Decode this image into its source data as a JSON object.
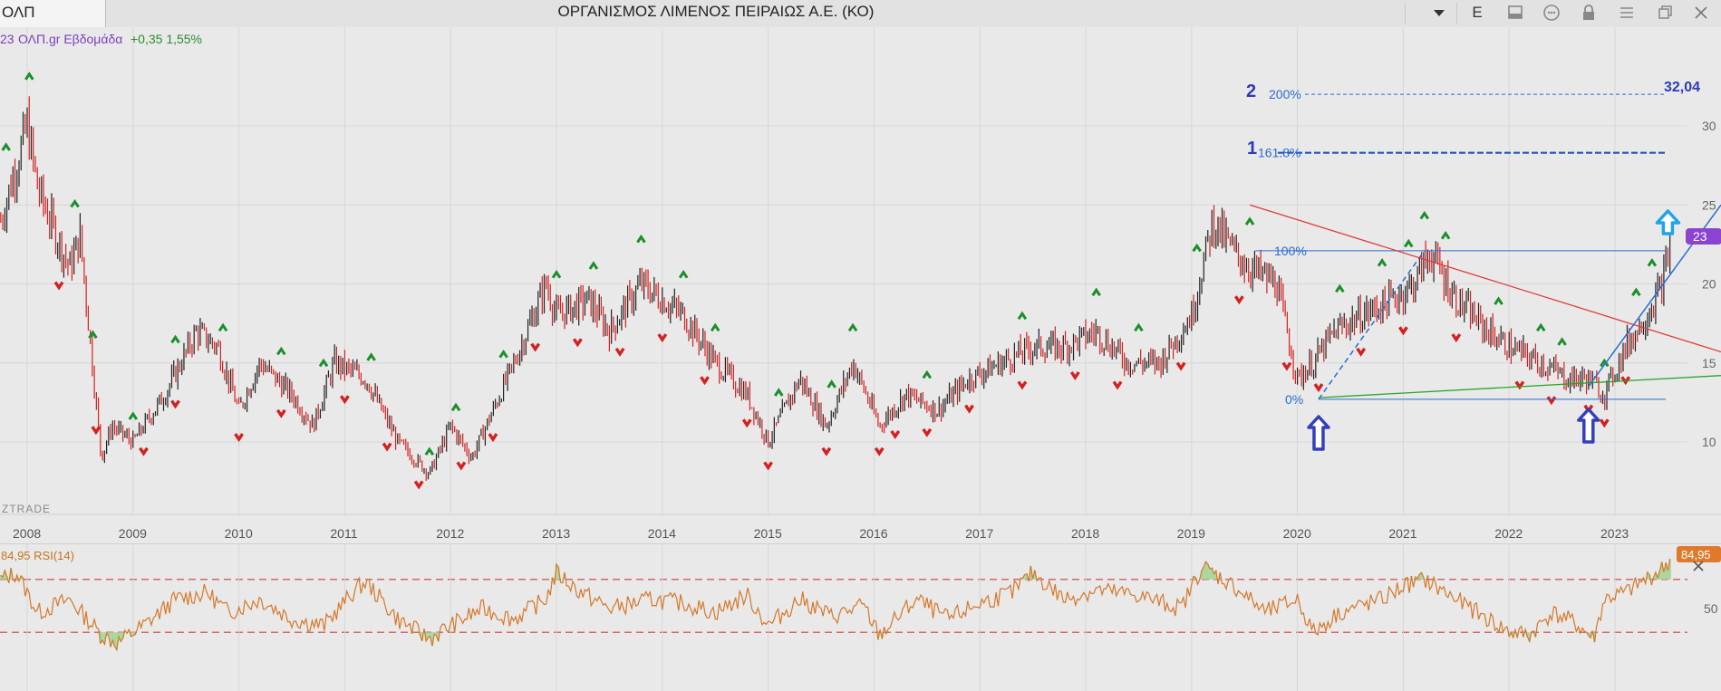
{
  "window": {
    "tab_label": "ΟΛΠ",
    "title": "ΟΡΓΑΝΙΣΜΟΣ ΛΙΜΕΝΟΣ ΠΕΙΡΑΙΩΣ Α.Ε. (ΚΟ)",
    "toolbar_letter": "E",
    "icons": [
      "chevron-down-icon",
      "sidebar-icon",
      "chat-icon",
      "lock-icon",
      "menu-icon",
      "restore-icon",
      "close-icon"
    ]
  },
  "chart_data": [
    {
      "type": "ohlc",
      "header_value": "23",
      "header_name": "ΟΛΠ.gr Εβδομάδα",
      "header_change": "+0,35 1,55%",
      "watermark": "ZTRADE",
      "x_ticks": [
        "2008",
        "2009",
        "2010",
        "2011",
        "2012",
        "2013",
        "2014",
        "2015",
        "2016",
        "2017",
        "2018",
        "2019",
        "2020",
        "2021",
        "2022",
        "2023"
      ],
      "y_ticks": [
        10,
        15,
        20,
        25,
        30
      ],
      "ylim": [
        6,
        35
      ],
      "price_badge": "23",
      "series": [
        {
          "x": [
            2007.75,
            2008.0,
            2008.1,
            2008.4,
            2008.5,
            2008.7,
            2008.8,
            2009.0,
            2009.3,
            2009.6,
            2009.8,
            2010.0,
            2010.2,
            2010.5,
            2010.7,
            2010.9,
            2011.2,
            2011.5,
            2011.8,
            2012.0,
            2012.2,
            2012.4,
            2012.6,
            2012.9,
            2013.0,
            2013.3,
            2013.5,
            2013.8,
            2014.0,
            2014.2,
            2014.5,
            2014.8,
            2015.0,
            2015.3,
            2015.55,
            2015.8,
            2016.05,
            2016.3,
            2016.6,
            2016.9,
            2017.2,
            2017.5,
            2017.8,
            2018.1,
            2018.4,
            2018.7,
            2019.0,
            2019.2,
            2019.4,
            2019.55,
            2019.8,
            2020.0,
            2020.15,
            2020.35,
            2020.6,
            2020.9,
            2021.1,
            2021.25,
            2021.5,
            2021.8,
            2022.0,
            2022.3,
            2022.55,
            2022.75,
            2022.9,
            2023.1,
            2023.3,
            2023.45,
            2023.53
          ],
          "close": [
            24,
            30,
            26,
            21,
            23,
            9,
            11,
            10,
            13,
            17,
            16,
            12,
            15,
            13,
            11,
            15,
            14,
            10,
            8,
            11,
            9,
            12,
            15,
            20,
            18,
            19,
            17,
            20,
            19,
            18,
            15,
            13,
            10,
            14,
            11,
            15,
            11,
            13,
            12,
            14,
            15,
            16,
            16,
            17,
            15,
            15,
            18,
            24,
            22,
            21,
            20,
            14,
            15,
            17,
            18,
            19,
            20,
            22,
            19,
            17,
            16,
            15,
            14,
            14,
            13,
            16,
            18,
            20,
            23
          ]
        }
      ],
      "swing_highs_x": [
        2007.8,
        2008.02,
        2008.45,
        2008.62,
        2009.0,
        2009.4,
        2009.85,
        2010.4,
        2010.8,
        2011.25,
        2011.8,
        2012.05,
        2012.5,
        2013.0,
        2013.35,
        2013.8,
        2014.2,
        2014.5,
        2015.1,
        2015.6,
        2015.8,
        2016.5,
        2017.4,
        2018.1,
        2018.5,
        2019.05,
        2019.55,
        2020.4,
        2020.8,
        2021.05,
        2021.2,
        2021.4,
        2021.9,
        2022.3,
        2022.5,
        2022.9,
        2023.2,
        2023.35
      ],
      "swing_lows_x": [
        2008.3,
        2008.65,
        2009.1,
        2009.4,
        2010.0,
        2010.4,
        2011.0,
        2011.4,
        2011.7,
        2012.1,
        2012.4,
        2012.8,
        2013.2,
        2013.6,
        2014.0,
        2014.4,
        2014.8,
        2015.0,
        2015.55,
        2016.05,
        2016.2,
        2016.5,
        2016.9,
        2017.4,
        2017.9,
        2018.3,
        2018.9,
        2019.45,
        2019.9,
        2020.2,
        2020.6,
        2021.0,
        2021.5,
        2022.1,
        2022.4,
        2022.75,
        2022.9,
        2023.1
      ],
      "annotations": {
        "fib_levels": [
          {
            "label": "0%",
            "value": 12.7
          },
          {
            "label": "100%",
            "value": 22.1
          },
          {
            "label": "161.8%",
            "value": 28.3
          },
          {
            "label": "200%",
            "value": 32.0
          }
        ],
        "wave_labels": [
          "1",
          "2"
        ],
        "target_value": "32,04",
        "arrows": [
          "blue-up-arrow-2020",
          "blue-up-arrow-2022",
          "cyan-up-arrow-2023"
        ],
        "trendlines": [
          "red descending resistance",
          "green rising support",
          "blue rising support",
          "blue dashed fib base"
        ]
      }
    },
    {
      "type": "line",
      "name": "RSI(14)",
      "current_value": "84,95",
      "header": "84,95 RSI(14)",
      "y_ticks": [
        50
      ],
      "ylim": [
        10,
        95
      ],
      "overbought": 70,
      "oversold": 30,
      "x": [
        2007.75,
        2007.9,
        2008.1,
        2008.4,
        2008.7,
        2008.85,
        2009.1,
        2009.4,
        2009.7,
        2009.9,
        2010.2,
        2010.5,
        2010.8,
        2011.1,
        2011.2,
        2011.5,
        2011.8,
        2012.0,
        2012.3,
        2012.6,
        2012.9,
        2013.0,
        2013.2,
        2013.5,
        2013.9,
        2014.2,
        2014.5,
        2014.8,
        2015.0,
        2015.3,
        2015.6,
        2015.9,
        2016.05,
        2016.4,
        2016.7,
        2017.0,
        2017.3,
        2017.5,
        2017.8,
        2018.1,
        2018.5,
        2018.9,
        2019.1,
        2019.4,
        2019.7,
        2020.0,
        2020.15,
        2020.4,
        2020.8,
        2021.0,
        2021.2,
        2021.5,
        2021.8,
        2022.0,
        2022.2,
        2022.4,
        2022.6,
        2022.8,
        2022.9,
        2023.1,
        2023.3,
        2023.45,
        2023.53
      ],
      "values": [
        70,
        75,
        45,
        55,
        28,
        22,
        35,
        55,
        60,
        45,
        55,
        40,
        35,
        62,
        68,
        40,
        25,
        35,
        48,
        40,
        55,
        75,
        62,
        48,
        55,
        52,
        45,
        58,
        35,
        55,
        42,
        50,
        28,
        55,
        40,
        52,
        60,
        75,
        55,
        62,
        58,
        48,
        80,
        65,
        45,
        55,
        30,
        45,
        55,
        65,
        70,
        55,
        40,
        30,
        28,
        45,
        38,
        25,
        55,
        60,
        70,
        78,
        85
      ]
    }
  ]
}
